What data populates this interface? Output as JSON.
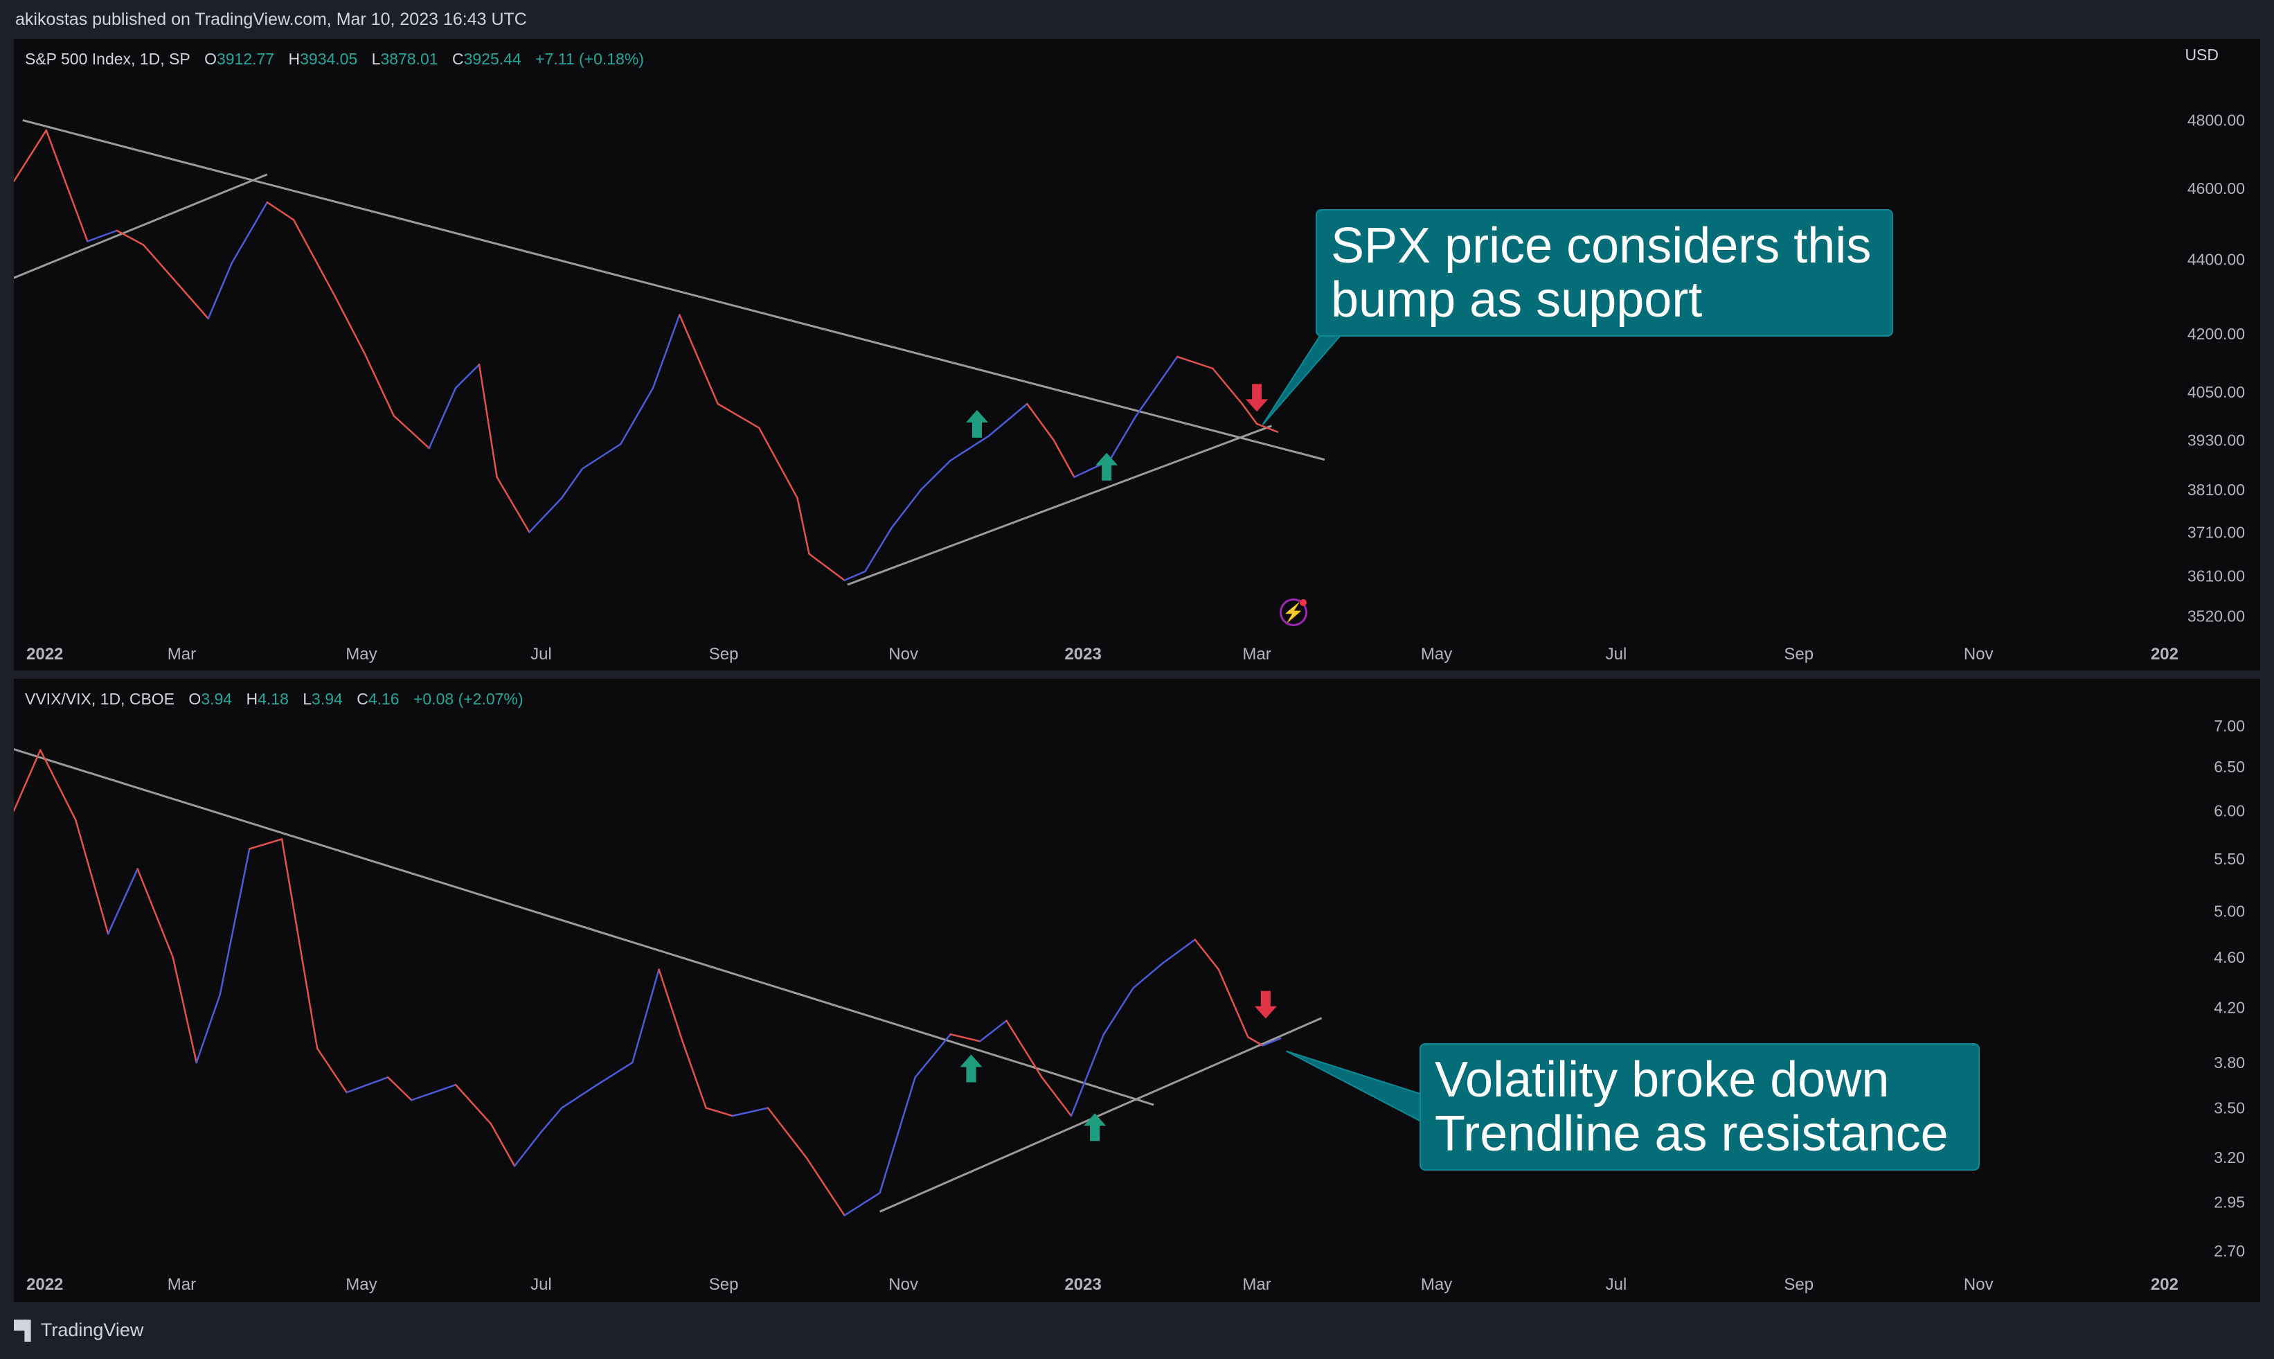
{
  "header": {
    "publisher": "akikostas published on TradingView.com, Mar 10, 2023 16:43 UTC"
  },
  "footer": {
    "brand": "TradingView",
    "logo_icon": "tradingview-logo-icon"
  },
  "colors": {
    "rising": "#4b5bd6",
    "falling": "#e0524a",
    "trendline": "#9b9b9b",
    "arrow_up": "#1f9e7f",
    "arrow_down": "#e03446",
    "callout_bg": "#056d78",
    "positive": "#26a69a",
    "background": "#0b0b0e"
  },
  "chart_data": [
    {
      "type": "line",
      "legend": {
        "symbol": "S&P 500 Index, 1D, SP",
        "open_label": "O",
        "open": "3912.77",
        "high_label": "H",
        "high": "3934.05",
        "low_label": "L",
        "low": "3878.01",
        "close_label": "C",
        "close": "3925.44",
        "change": "+7.11 (+0.18%)"
      },
      "currency": "USD",
      "y_scale": "log",
      "ylim": [
        3480,
        4900
      ],
      "y_ticks": [
        "4800.00",
        "4600.00",
        "4400.00",
        "4200.00",
        "4050.00",
        "3930.00",
        "3810.00",
        "3710.00",
        "3610.00",
        "3520.00"
      ],
      "x_ticks": [
        "2022",
        "Mar",
        "May",
        "Jul",
        "Sep",
        "Nov",
        "2023",
        "Mar",
        "May",
        "Jul",
        "Sep",
        "Nov",
        "202"
      ],
      "x_tick_bold": [
        true,
        false,
        false,
        false,
        false,
        false,
        true,
        false,
        false,
        false,
        false,
        false,
        true
      ],
      "xlim": [
        "2022-01-03",
        "2024-01-10"
      ],
      "series": [
        {
          "x": [
            "2022-01-03",
            "2022-01-14",
            "2022-01-28",
            "2022-02-07",
            "2022-02-16",
            "2022-02-28",
            "2022-03-10",
            "2022-03-18",
            "2022-03-30",
            "2022-04-08",
            "2022-04-22",
            "2022-05-02",
            "2022-05-12",
            "2022-05-24",
            "2022-06-02",
            "2022-06-10",
            "2022-06-16",
            "2022-06-27",
            "2022-07-08",
            "2022-07-15",
            "2022-07-28",
            "2022-08-08",
            "2022-08-17",
            "2022-08-30",
            "2022-09-13",
            "2022-09-26",
            "2022-09-30",
            "2022-10-12",
            "2022-10-19",
            "2022-10-28",
            "2022-11-07",
            "2022-11-17",
            "2022-11-30",
            "2022-12-13",
            "2022-12-22",
            "2022-12-29",
            "2023-01-10",
            "2023-01-19",
            "2023-02-02",
            "2023-02-14",
            "2023-02-24",
            "2023-03-01",
            "2023-03-08"
          ],
          "y": [
            4620,
            4770,
            4450,
            4480,
            4440,
            4330,
            4240,
            4390,
            4560,
            4510,
            4300,
            4150,
            3990,
            3910,
            4060,
            4120,
            3840,
            3710,
            3790,
            3860,
            3920,
            4060,
            4250,
            4020,
            3960,
            3790,
            3660,
            3600,
            3620,
            3720,
            3810,
            3880,
            3940,
            4020,
            3930,
            3840,
            3880,
            3990,
            4140,
            4110,
            4020,
            3970,
            3950
          ],
          "up_down": [
            1,
            0,
            0,
            1,
            0,
            0,
            0,
            1,
            1,
            0,
            0,
            0,
            0,
            0,
            1,
            1,
            0,
            0,
            1,
            1,
            1,
            1,
            1,
            0,
            0,
            0,
            0,
            0,
            1,
            1,
            1,
            1,
            1,
            1,
            0,
            0,
            1,
            1,
            1,
            0,
            0,
            0,
            0
          ]
        }
      ],
      "trendlines": [
        {
          "x": [
            "2022-01-06",
            "2023-03-24"
          ],
          "y": [
            4800,
            3882
          ]
        },
        {
          "x": [
            "2021-12-28",
            "2022-03-30"
          ],
          "y": [
            4330,
            4640
          ]
        },
        {
          "x": [
            "2022-10-13",
            "2023-03-06"
          ],
          "y": [
            3590,
            3965
          ]
        }
      ],
      "arrows": [
        {
          "direction": "up",
          "x": "2022-11-26",
          "y": 3970
        },
        {
          "direction": "up",
          "x": "2023-01-09",
          "y": 3865
        },
        {
          "direction": "down",
          "x": "2023-03-01",
          "y": 4035
        }
      ],
      "annotation": {
        "text": "SPX price considers this\nbump as support",
        "anchor_x": "2023-03-03",
        "anchor_y": 3968
      }
    },
    {
      "type": "line",
      "legend": {
        "symbol": "VVIX/VIX, 1D, CBOE",
        "open_label": "O",
        "open": "3.94",
        "high_label": "H",
        "high": "4.18",
        "low_label": "L",
        "low": "3.94",
        "close_label": "C",
        "close": "4.16",
        "change": "+0.08 (+2.07%)"
      },
      "y_scale": "log",
      "ylim": [
        2.62,
        7.25
      ],
      "y_ticks": [
        "7.00",
        "6.50",
        "6.00",
        "5.50",
        "5.00",
        "4.60",
        "4.20",
        "3.80",
        "3.50",
        "3.20",
        "2.95",
        "2.70"
      ],
      "x_ticks": [
        "2022",
        "Mar",
        "May",
        "Jul",
        "Sep",
        "Nov",
        "2023",
        "Mar",
        "May",
        "Jul",
        "Sep",
        "Nov",
        "202"
      ],
      "x_tick_bold": [
        true,
        false,
        false,
        false,
        false,
        false,
        true,
        false,
        false,
        false,
        false,
        false,
        true
      ],
      "xlim": [
        "2022-01-03",
        "2024-01-10"
      ],
      "series": [
        {
          "x": [
            "2022-01-03",
            "2022-01-12",
            "2022-01-24",
            "2022-02-04",
            "2022-02-14",
            "2022-02-26",
            "2022-03-06",
            "2022-03-14",
            "2022-03-24",
            "2022-04-04",
            "2022-04-16",
            "2022-04-26",
            "2022-05-10",
            "2022-05-18",
            "2022-06-02",
            "2022-06-14",
            "2022-06-22",
            "2022-07-01",
            "2022-07-08",
            "2022-07-20",
            "2022-08-01",
            "2022-08-10",
            "2022-08-18",
            "2022-08-26",
            "2022-09-04",
            "2022-09-16",
            "2022-09-29",
            "2022-10-12",
            "2022-10-24",
            "2022-11-05",
            "2022-11-17",
            "2022-11-27",
            "2022-12-06",
            "2022-12-18",
            "2022-12-28",
            "2023-01-08",
            "2023-01-18",
            "2023-01-28",
            "2023-02-08",
            "2023-02-16",
            "2023-02-26",
            "2023-03-03",
            "2023-03-09"
          ],
          "y": [
            6.0,
            6.7,
            5.9,
            4.8,
            5.4,
            4.6,
            3.8,
            4.3,
            5.6,
            5.7,
            3.9,
            3.6,
            3.7,
            3.55,
            3.65,
            3.4,
            3.15,
            3.35,
            3.5,
            3.65,
            3.8,
            4.5,
            3.95,
            3.5,
            3.45,
            3.5,
            3.2,
            2.88,
            3.0,
            3.7,
            4.0,
            3.95,
            4.1,
            3.7,
            3.45,
            4.0,
            4.35,
            4.55,
            4.75,
            4.5,
            3.98,
            3.92,
            3.97
          ],
          "up_down": [
            1,
            0,
            0,
            0,
            1,
            0,
            0,
            1,
            1,
            0,
            0,
            0,
            1,
            0,
            1,
            0,
            0,
            1,
            1,
            1,
            1,
            1,
            0,
            0,
            0,
            1,
            0,
            0,
            1,
            1,
            1,
            0,
            1,
            0,
            0,
            1,
            1,
            1,
            1,
            0,
            0,
            0,
            1
          ]
        }
      ],
      "trendlines": [
        {
          "x": [
            "2022-01-02",
            "2023-01-25"
          ],
          "y": [
            6.72,
            3.52
          ]
        },
        {
          "x": [
            "2022-10-24",
            "2023-03-23"
          ],
          "y": [
            2.9,
            4.12
          ]
        }
      ],
      "arrows": [
        {
          "direction": "up",
          "x": "2022-11-24",
          "y": 3.76
        },
        {
          "direction": "up",
          "x": "2023-01-05",
          "y": 3.38
        },
        {
          "direction": "down",
          "x": "2023-03-04",
          "y": 4.22
        }
      ],
      "annotation": {
        "text": "Volatility broke down\nTrendline as resistance",
        "anchor_x": "2023-03-11",
        "anchor_y": 3.88
      }
    }
  ]
}
